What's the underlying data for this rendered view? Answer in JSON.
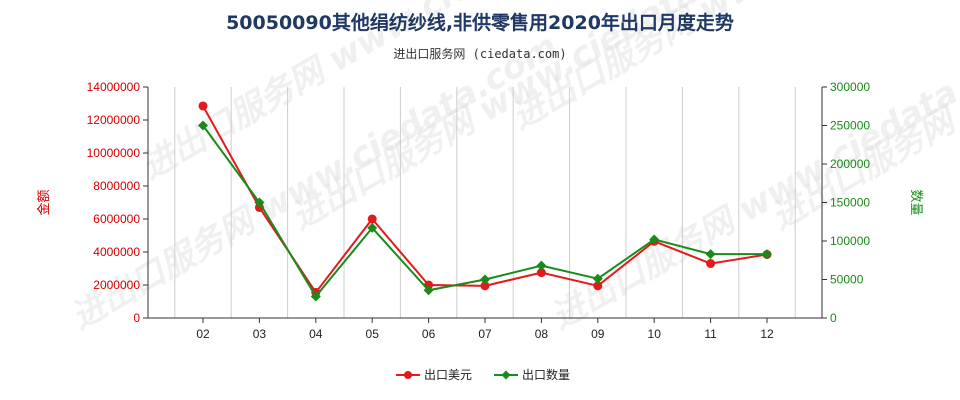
{
  "chart_data": {
    "type": "line",
    "title": "50050090其他绢纺纱线,非供零售用2020年出口月度走势",
    "subtitle": "进出口服务网 (ciedata.com)",
    "watermark": "进出口服务网 www.ciedata.com",
    "categories": [
      "02",
      "03",
      "04",
      "05",
      "06",
      "07",
      "08",
      "09",
      "10",
      "11",
      "12"
    ],
    "y_left": {
      "label": "金额",
      "range": [
        0,
        14000000
      ],
      "ticks": [
        0,
        2000000,
        4000000,
        6000000,
        8000000,
        10000000,
        12000000,
        14000000
      ],
      "tick_labels": [
        "0",
        "2000000",
        "4000000",
        "6000000",
        "8000000",
        "10000000",
        "12000000",
        "14000000"
      ]
    },
    "y_right": {
      "label": "数量",
      "range": [
        0,
        300000
      ],
      "ticks": [
        0,
        50000,
        100000,
        150000,
        200000,
        250000,
        300000
      ],
      "tick_labels": [
        "0",
        "50000",
        "100000",
        "150000",
        "200000",
        "250000",
        "300000"
      ]
    },
    "grid": {
      "vertical": true,
      "horizontal": false
    },
    "legend_position": "bottom-center",
    "series": [
      {
        "name": "出口美元",
        "axis": "left",
        "color": "#e31a1c",
        "values": [
          12850000,
          6700000,
          1550000,
          6000000,
          2000000,
          1950000,
          2750000,
          1950000,
          4650000,
          3300000,
          3850000
        ]
      },
      {
        "name": "出口数量",
        "axis": "right",
        "color": "#1a8a1a",
        "values": [
          250000,
          150000,
          28000,
          117000,
          36000,
          50000,
          68000,
          51000,
          102000,
          83000,
          83000
        ]
      }
    ]
  }
}
